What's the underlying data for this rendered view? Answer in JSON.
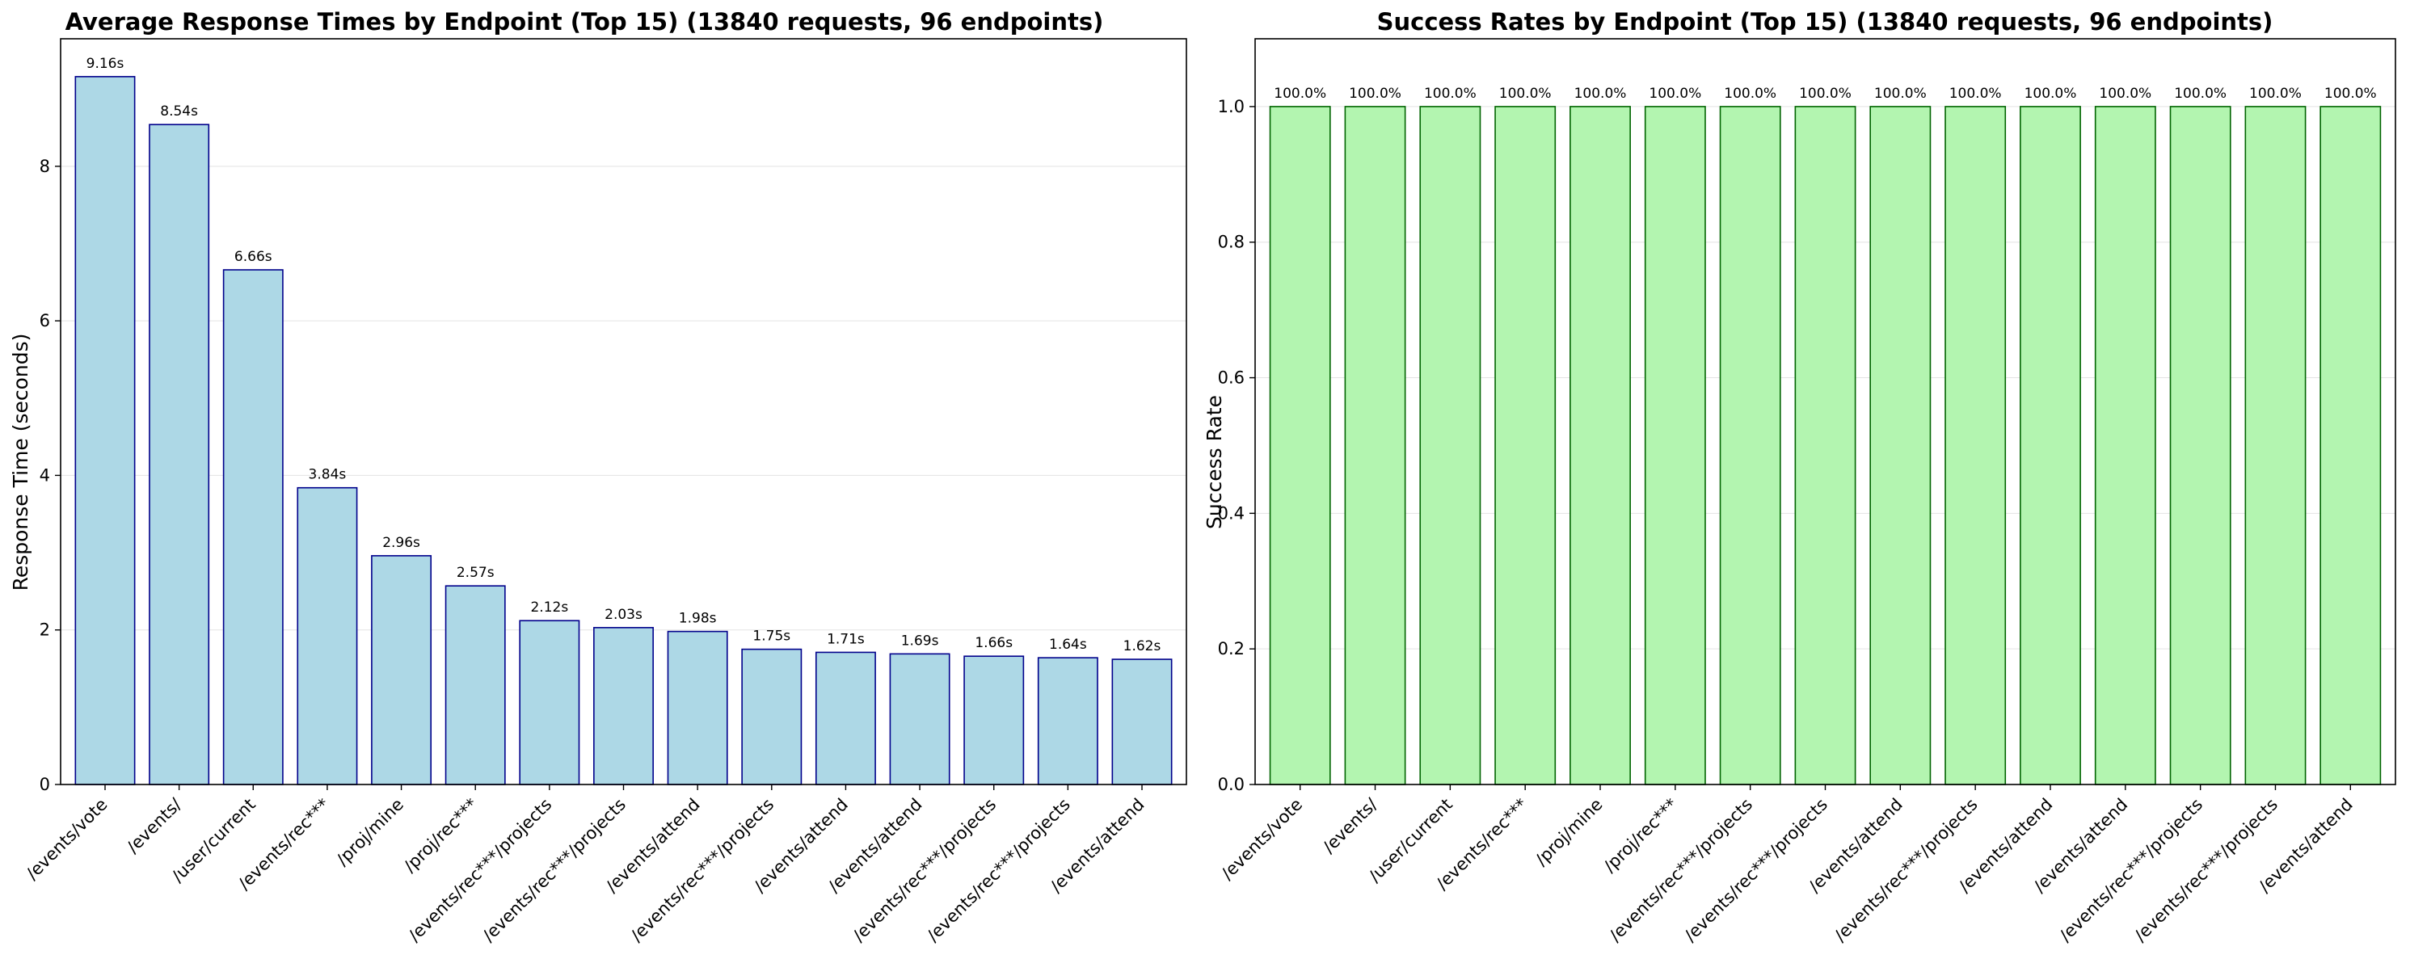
{
  "chart_data": [
    {
      "type": "bar",
      "title": "Average Response Times by Endpoint (Top 15) (13840 requests, 96 endpoints)",
      "xlabel": "",
      "ylabel": "Response Time (seconds)",
      "ylim": [
        0,
        9.65
      ],
      "yticks": [
        0,
        2,
        4,
        6,
        8
      ],
      "ytick_labels": [
        "0",
        "2",
        "4",
        "6",
        "8"
      ],
      "grid": "y",
      "categories": [
        "/events/vote",
        "/events/",
        "/user/current",
        "/events/rec***",
        "/proj/mine",
        "/proj/rec***",
        "/events/rec***/projects",
        "/events/rec***/projects",
        "/events/attend",
        "/events/rec***/projects",
        "/events/attend",
        "/events/attend",
        "/events/rec***/projects",
        "/events/rec***/projects",
        "/events/attend"
      ],
      "values": [
        9.16,
        8.54,
        6.66,
        3.84,
        2.96,
        2.57,
        2.12,
        2.03,
        1.98,
        1.75,
        1.71,
        1.69,
        1.66,
        1.64,
        1.62
      ],
      "data_labels": [
        "9.16s",
        "8.54s",
        "6.66s",
        "3.84s",
        "2.96s",
        "2.57s",
        "2.12s",
        "2.03s",
        "1.98s",
        "1.75s",
        "1.71s",
        "1.69s",
        "1.66s",
        "1.64s",
        "1.62s"
      ],
      "bar_color": "#add8e6",
      "edge_color": "#00008b"
    },
    {
      "type": "bar",
      "title": "Success Rates by Endpoint (Top 15) (13840 requests, 96 endpoints)",
      "xlabel": "",
      "ylabel": "Success Rate",
      "ylim": [
        0,
        1.1
      ],
      "yticks": [
        0,
        0.2,
        0.4,
        0.6,
        0.8,
        1.0
      ],
      "ytick_labels": [
        "0.0",
        "0.2",
        "0.4",
        "0.6",
        "0.8",
        "1.0"
      ],
      "grid": "y",
      "categories": [
        "/events/vote",
        "/events/",
        "/user/current",
        "/events/rec***",
        "/proj/mine",
        "/proj/rec***",
        "/events/rec***/projects",
        "/events/rec***/projects",
        "/events/attend",
        "/events/rec***/projects",
        "/events/attend",
        "/events/attend",
        "/events/rec***/projects",
        "/events/rec***/projects",
        "/events/attend"
      ],
      "values": [
        1.0,
        1.0,
        1.0,
        1.0,
        1.0,
        1.0,
        1.0,
        1.0,
        1.0,
        1.0,
        1.0,
        1.0,
        1.0,
        1.0,
        1.0
      ],
      "data_labels": [
        "100.0%",
        "100.0%",
        "100.0%",
        "100.0%",
        "100.0%",
        "100.0%",
        "100.0%",
        "100.0%",
        "100.0%",
        "100.0%",
        "100.0%",
        "100.0%",
        "100.0%",
        "100.0%",
        "100.0%"
      ],
      "bar_color": "#b3f5b0",
      "edge_color": "#006400"
    }
  ]
}
